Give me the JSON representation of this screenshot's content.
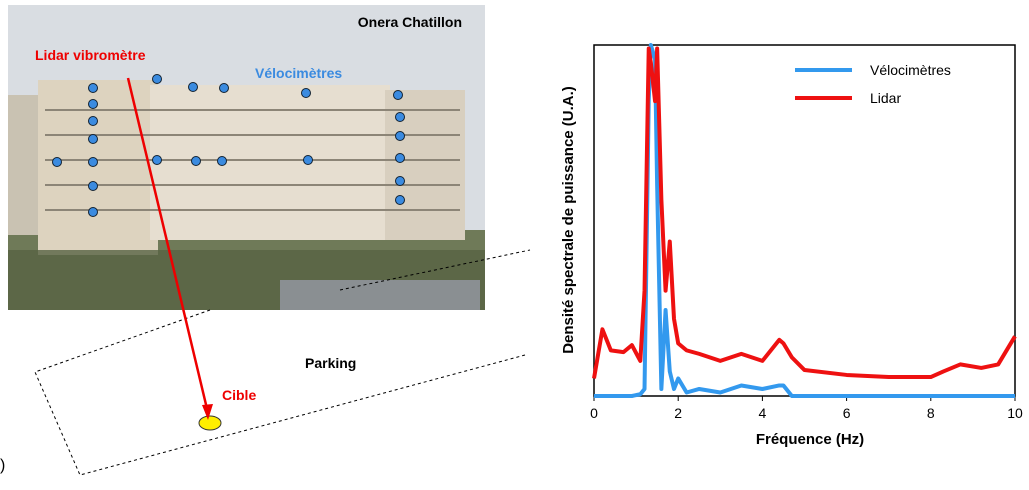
{
  "photo": {
    "site": "Onera Chatillon",
    "lidar": "Lidar vibromètre",
    "sensors": "Vélocimètres",
    "parking": "Parking",
    "target": "Cible",
    "panel_mark": ")"
  },
  "chart_data": {
    "type": "line",
    "x_label": "Fréquence (Hz)",
    "y_label": "Densité spectrale de puissance (U.A.)",
    "x": [
      0,
      0.2,
      0.4,
      0.7,
      0.9,
      1.1,
      1.2,
      1.3,
      1.35,
      1.45,
      1.5,
      1.6,
      1.7,
      1.8,
      1.9,
      2.0,
      2.2,
      2.5,
      3,
      3.5,
      4,
      4.4,
      4.5,
      4.7,
      5,
      6,
      7,
      8,
      8.3,
      8.7,
      9.2,
      9.6,
      10
    ],
    "series": [
      {
        "name": "Vélocimètres",
        "color": "#3399ee",
        "values": [
          0,
          0,
          0,
          0,
          0,
          0.005,
          0.02,
          0.84,
          1.0,
          0.96,
          0.6,
          0.02,
          0.245,
          0.07,
          0.02,
          0.05,
          0.01,
          0.02,
          0.01,
          0.03,
          0.02,
          0.03,
          0.03,
          0,
          0,
          0,
          0,
          0,
          0,
          0,
          0,
          0,
          0
        ]
      },
      {
        "name": "Lidar",
        "color": "#ee1111",
        "values": [
          0.05,
          0.19,
          0.13,
          0.125,
          0.145,
          0.1,
          0.3,
          0.99,
          0.95,
          0.84,
          0.99,
          0.56,
          0.3,
          0.44,
          0.22,
          0.15,
          0.13,
          0.12,
          0.1,
          0.12,
          0.1,
          0.16,
          0.15,
          0.11,
          0.074,
          0.06,
          0.054,
          0.054,
          0.07,
          0.09,
          0.08,
          0.09,
          0.17
        ]
      }
    ],
    "xlim": [
      0,
      10
    ],
    "xticks": [
      0,
      2,
      4,
      6,
      8,
      10
    ],
    "ylim": [
      0,
      1
    ],
    "legend": "upper-right"
  }
}
